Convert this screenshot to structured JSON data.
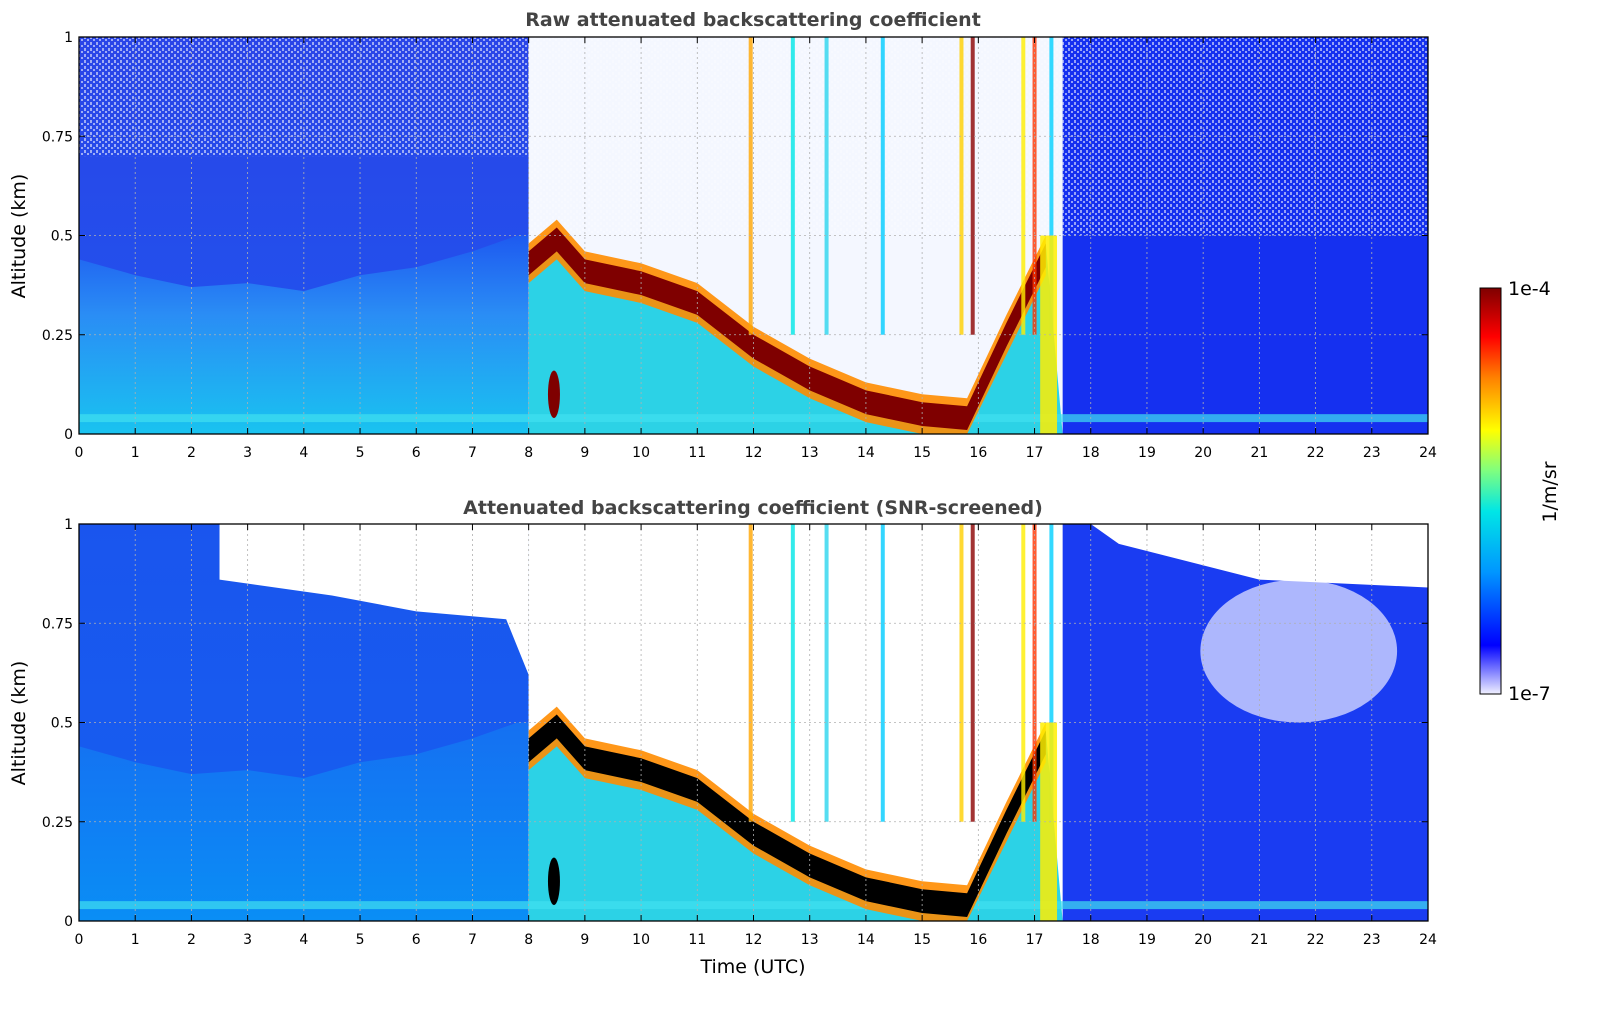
{
  "chart_data": [
    {
      "type": "heatmap",
      "title": "Raw attenuated backscattering coefficient",
      "ylabel": "Altitude (km)",
      "xlabel": "",
      "xlim": [
        0,
        24
      ],
      "ylim": [
        0,
        1
      ],
      "x_ticks": [
        "0",
        "1",
        "2",
        "3",
        "4",
        "5",
        "6",
        "7",
        "8",
        "9",
        "10",
        "11",
        "12",
        "13",
        "14",
        "15",
        "16",
        "17",
        "18",
        "19",
        "20",
        "21",
        "22",
        "23",
        "24"
      ],
      "y_ticks": [
        "0",
        "0.25",
        "0.5",
        "0.75",
        "1"
      ],
      "grid": true,
      "screened": false,
      "features": {
        "aerosol_layer_top_km": [
          {
            "time": 0,
            "alt": 0.42
          },
          {
            "time": 2,
            "alt": 0.4
          },
          {
            "time": 4,
            "alt": 0.38
          },
          {
            "time": 6,
            "alt": 0.4
          },
          {
            "time": 7.5,
            "alt": 0.45
          },
          {
            "time": 8,
            "alt": 0.48
          }
        ],
        "cloud_layer_km": [
          {
            "time": 8.0,
            "alt": 0.43
          },
          {
            "time": 8.5,
            "alt": 0.49
          },
          {
            "time": 9.0,
            "alt": 0.41
          },
          {
            "time": 10.0,
            "alt": 0.38
          },
          {
            "time": 11.0,
            "alt": 0.33
          },
          {
            "time": 12.0,
            "alt": 0.22
          },
          {
            "time": 13.0,
            "alt": 0.14
          },
          {
            "time": 14.0,
            "alt": 0.08
          },
          {
            "time": 15.0,
            "alt": 0.05
          },
          {
            "time": 15.8,
            "alt": 0.04
          },
          {
            "time": 16.5,
            "alt": 0.25
          },
          {
            "time": 17.2,
            "alt": 0.45
          }
        ],
        "clear_sky_after_utc": 17.5
      }
    },
    {
      "type": "heatmap",
      "title": "Attenuated backscattering coefficient (SNR-screened)",
      "ylabel": "Altitude (km)",
      "xlabel": "Time (UTC)",
      "xlim": [
        0,
        24
      ],
      "ylim": [
        0,
        1
      ],
      "x_ticks": [
        "0",
        "1",
        "2",
        "3",
        "4",
        "5",
        "6",
        "7",
        "8",
        "9",
        "10",
        "11",
        "12",
        "13",
        "14",
        "15",
        "16",
        "17",
        "18",
        "19",
        "20",
        "21",
        "22",
        "23",
        "24"
      ],
      "y_ticks": [
        "0",
        "0.25",
        "0.5",
        "0.75",
        "1"
      ],
      "grid": true,
      "screened": true
    }
  ],
  "colorbar": {
    "max_label": "1e-4",
    "min_label": "1e-7",
    "unit": "1/m/sr",
    "scale": "log",
    "colormap": [
      "#f0f0ff",
      "#0000ff",
      "#0096ff",
      "#00e6e6",
      "#7fff7f",
      "#ffff00",
      "#ff8000",
      "#ff0000",
      "#7f0000"
    ]
  }
}
